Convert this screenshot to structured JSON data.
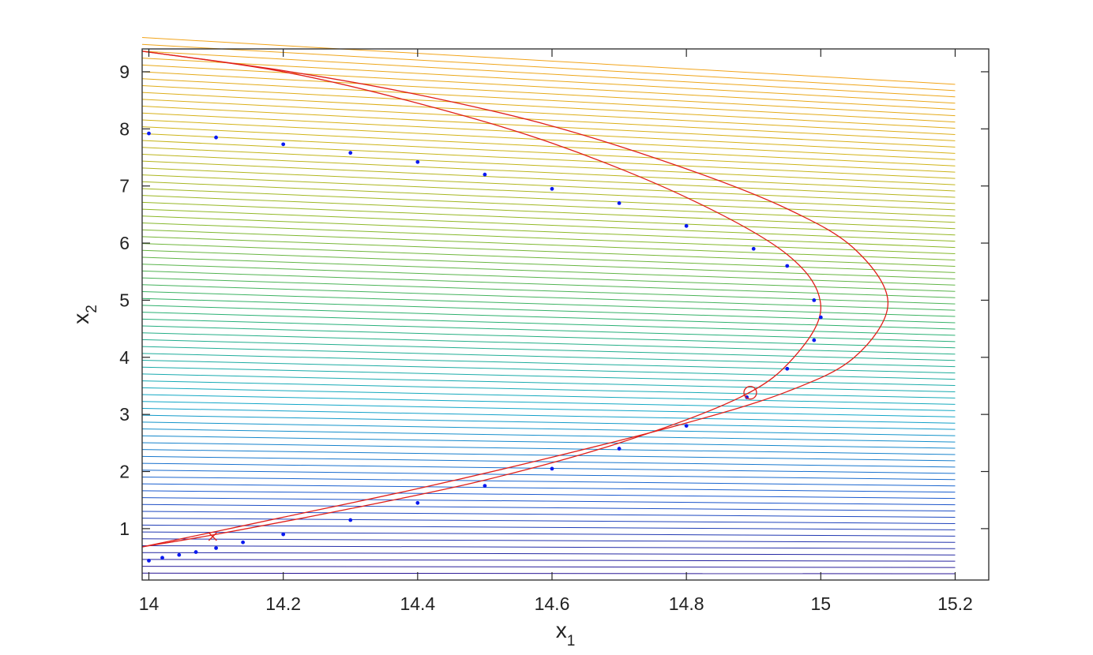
{
  "chart_data": {
    "type": "line",
    "title": "",
    "xlabel": "x",
    "xlabel_subscript": "1",
    "ylabel": "x",
    "ylabel_subscript": "2",
    "xlim": [
      13.99,
      15.25
    ],
    "ylim": [
      0.1,
      9.4
    ],
    "x_ticks": [
      14,
      14.2,
      14.4,
      14.6,
      14.8,
      15,
      15.2
    ],
    "x_tick_labels": [
      "14",
      "14.2",
      "14.4",
      "14.6",
      "14.8",
      "15",
      "15.2"
    ],
    "y_ticks": [
      1,
      2,
      3,
      4,
      5,
      6,
      7,
      8,
      9
    ],
    "y_tick_labels": [
      "1",
      "2",
      "3",
      "4",
      "5",
      "6",
      "7",
      "8",
      "9"
    ],
    "grid": false,
    "legend": "none",
    "colors": {
      "constraint_curves": "#e0201a",
      "iterate_dots": "#0a1af0",
      "marker": "#e0201a",
      "contour_colormap": [
        "#2a1290",
        "#1a5ad0",
        "#12a8c8",
        "#2ab070",
        "#8ab828",
        "#d0b418",
        "#f2a41a"
      ]
    },
    "contour_lines": {
      "x_range": [
        13.99,
        15.2
      ],
      "y_start": [
        0.1,
        9.6
      ],
      "y_end": [
        0.1,
        8.78
      ],
      "count": 80
    },
    "series": [
      {
        "kind": "curve",
        "style": "red-line",
        "points": [
          [
            13.99,
            9.36
          ],
          [
            14.2,
            9.0
          ],
          [
            14.4,
            8.45
          ],
          [
            14.6,
            7.75
          ],
          [
            14.8,
            6.8
          ],
          [
            14.95,
            5.8
          ],
          [
            15.0,
            4.9
          ],
          [
            14.96,
            4.0
          ],
          [
            14.88,
            3.3
          ],
          [
            14.7,
            2.5
          ],
          [
            14.5,
            1.85
          ],
          [
            14.3,
            1.35
          ],
          [
            14.1,
            0.9
          ],
          [
            13.99,
            0.68
          ]
        ]
      },
      {
        "kind": "curve",
        "style": "red-line",
        "points": [
          [
            13.99,
            9.36
          ],
          [
            14.2,
            9.02
          ],
          [
            14.4,
            8.6
          ],
          [
            14.6,
            8.05
          ],
          [
            14.8,
            7.3
          ],
          [
            14.95,
            6.6
          ],
          [
            15.05,
            5.9
          ],
          [
            15.1,
            4.95
          ],
          [
            15.05,
            4.0
          ],
          [
            14.95,
            3.4
          ],
          [
            14.8,
            2.85
          ],
          [
            14.6,
            2.25
          ],
          [
            14.4,
            1.7
          ],
          [
            14.2,
            1.2
          ],
          [
            14.1,
            0.95
          ],
          [
            13.99,
            0.68
          ]
        ]
      },
      {
        "kind": "dots",
        "style": "blue-dots",
        "points": [
          [
            14.0,
            0.44
          ],
          [
            14.02,
            0.49
          ],
          [
            14.045,
            0.54
          ],
          [
            14.07,
            0.59
          ],
          [
            14.1,
            0.66
          ],
          [
            14.14,
            0.76
          ],
          [
            14.2,
            0.9
          ],
          [
            14.3,
            1.15
          ],
          [
            14.4,
            1.45
          ],
          [
            14.5,
            1.75
          ],
          [
            14.6,
            2.05
          ],
          [
            14.7,
            2.4
          ],
          [
            14.8,
            2.8
          ],
          [
            14.89,
            3.3
          ],
          [
            14.95,
            3.8
          ],
          [
            14.99,
            4.3
          ],
          [
            15.0,
            4.7
          ],
          [
            14.99,
            5.0
          ],
          [
            14.95,
            5.6
          ],
          [
            14.9,
            5.9
          ],
          [
            14.8,
            6.3
          ],
          [
            14.7,
            6.7
          ],
          [
            14.6,
            6.95
          ],
          [
            14.5,
            7.2
          ],
          [
            14.4,
            7.42
          ],
          [
            14.3,
            7.58
          ],
          [
            14.2,
            7.73
          ],
          [
            14.1,
            7.85
          ],
          [
            14.0,
            7.92
          ]
        ]
      }
    ],
    "markers": [
      {
        "kind": "cross",
        "x": 14.095,
        "y": 0.86
      },
      {
        "kind": "circle",
        "x": 14.895,
        "y": 3.38
      }
    ]
  }
}
